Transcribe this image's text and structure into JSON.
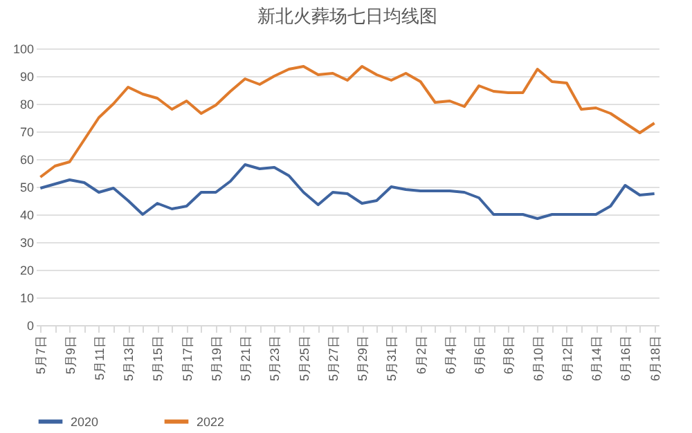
{
  "chart_data": {
    "type": "line",
    "title": "新北火葬场七日均线图",
    "categories": [
      "5月7日",
      null,
      "5月9日",
      null,
      "5月11日",
      null,
      "5月13日",
      null,
      "5月15日",
      null,
      "5月17日",
      null,
      "5月19日",
      null,
      "5月21日",
      null,
      "5月23日",
      null,
      "5月25日",
      null,
      "5月27日",
      null,
      "5月29日",
      null,
      "5月31日",
      null,
      "6月2日",
      null,
      "6月4日",
      null,
      "6月6日",
      null,
      "6月8日",
      null,
      "6月10日",
      null,
      "6月12日",
      null,
      "6月14日",
      null,
      "6月16日",
      null,
      "6月18日"
    ],
    "series": [
      {
        "name": "2020",
        "color": "#3e64a0",
        "values": [
          49.5,
          51,
          52.5,
          51.5,
          48,
          49.5,
          45,
          40,
          44,
          42,
          43,
          48,
          48,
          52,
          58,
          56.5,
          57,
          54,
          48,
          43.5,
          48,
          47.5,
          44,
          45,
          50,
          49,
          48.5,
          48.5,
          48.5,
          48,
          46,
          40,
          40,
          40,
          38.5,
          40,
          40,
          40,
          40,
          43,
          50.5,
          47,
          47.5
        ]
      },
      {
        "name": "2022",
        "color": "#e07b2c",
        "values": [
          53.5,
          57.5,
          59,
          67,
          75,
          80,
          86,
          83.5,
          82,
          78,
          81,
          76.5,
          79.5,
          84.5,
          89,
          87,
          90,
          92.5,
          93.5,
          90.5,
          91,
          88.5,
          93.5,
          90.5,
          88.5,
          91,
          88,
          80.5,
          81,
          79,
          86.5,
          84.5,
          84,
          84,
          92.5,
          88,
          87.5,
          78,
          78.5,
          76.5,
          73,
          69.5,
          73
        ]
      }
    ],
    "ylim": [
      0,
      100
    ],
    "yticks": [
      0,
      10,
      20,
      30,
      40,
      50,
      60,
      70,
      80,
      90,
      100
    ],
    "grid": "y",
    "legend": "bottom",
    "line_style": "solid"
  }
}
